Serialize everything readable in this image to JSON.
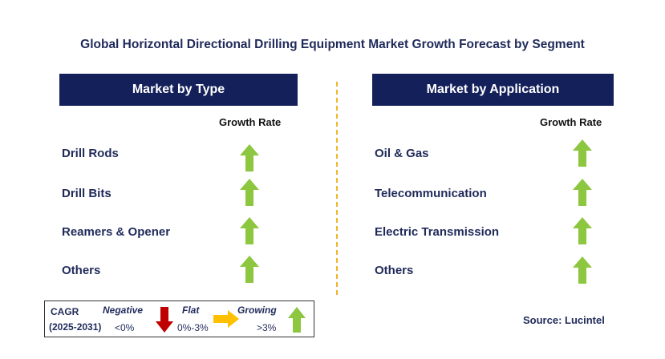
{
  "title": "Global Horizontal Directional Drilling Equipment Market Growth Forecast by Segment",
  "left_panel": {
    "header": "Market by Type",
    "growth_rate_label": "Growth Rate",
    "rows": [
      {
        "label": "Drill Rods",
        "trend": "growing"
      },
      {
        "label": "Drill Bits",
        "trend": "growing"
      },
      {
        "label": "Reamers & Opener",
        "trend": "growing"
      },
      {
        "label": "Others",
        "trend": "growing"
      }
    ]
  },
  "right_panel": {
    "header": "Market by Application",
    "growth_rate_label": "Growth Rate",
    "rows": [
      {
        "label": "Oil & Gas",
        "trend": "growing"
      },
      {
        "label": "Telecommunication",
        "trend": "growing"
      },
      {
        "label": "Electric Transmission",
        "trend": "growing"
      },
      {
        "label": "Others",
        "trend": "growing"
      }
    ]
  },
  "legend": {
    "cagr_label": "CAGR",
    "period": "(2025-2031)",
    "negative_label": "Negative",
    "negative_range": "<0%",
    "flat_label": "Flat",
    "flat_range": "0%-3%",
    "growing_label": "Growing",
    "growing_range": ">3%"
  },
  "source": "Source: Lucintel",
  "colors": {
    "header_bg": "#14205a",
    "text_navy": "#1f2a5a",
    "arrow_green": "#8dc63f",
    "arrow_red": "#c00000",
    "arrow_yellow": "#ffc000",
    "divider": "#f2b233"
  },
  "icons": {
    "growing": "up-arrow-green-icon",
    "negative": "down-arrow-red-icon",
    "flat": "right-arrow-yellow-icon"
  }
}
